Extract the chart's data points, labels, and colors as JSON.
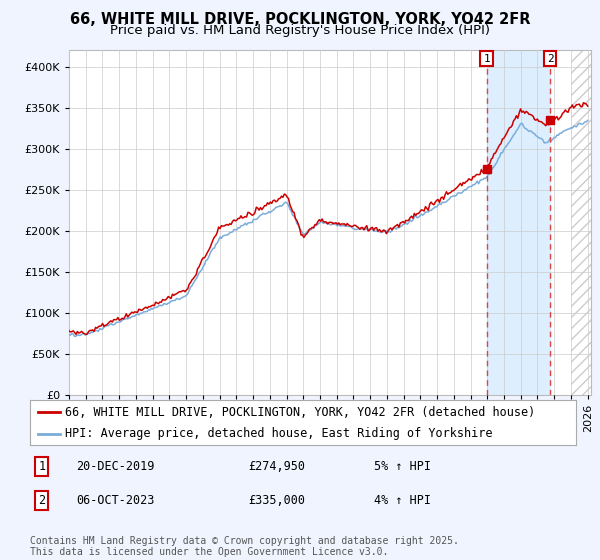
{
  "title_line1": "66, WHITE MILL DRIVE, POCKLINGTON, YORK, YO42 2FR",
  "title_line2": "Price paid vs. HM Land Registry's House Price Index (HPI)",
  "ylim": [
    0,
    420000
  ],
  "yticks": [
    0,
    50000,
    100000,
    150000,
    200000,
    250000,
    300000,
    350000,
    400000
  ],
  "year_start": 1995,
  "year_end": 2026,
  "legend_line1": "66, WHITE MILL DRIVE, POCKLINGTON, YORK, YO42 2FR (detached house)",
  "legend_line2": "HPI: Average price, detached house, East Riding of Yorkshire",
  "sale1_label": "1",
  "sale1_date": "20-DEC-2019",
  "sale1_price": "£274,950",
  "sale1_hpi": "5% ↑ HPI",
  "sale1_year": 2019.96,
  "sale1_value": 274950,
  "sale2_label": "2",
  "sale2_date": "06-OCT-2023",
  "sale2_price": "£335,000",
  "sale2_hpi": "4% ↑ HPI",
  "sale2_year": 2023.77,
  "sale2_value": 335000,
  "red_color": "#cc0000",
  "blue_color": "#7aadda",
  "shade_color": "#ddeeff",
  "dashed_color": "#dd4444",
  "background_color": "#f0f4ff",
  "plot_bg_color": "#ffffff",
  "grid_color": "#cccccc",
  "footer": "Contains HM Land Registry data © Crown copyright and database right 2025.\nThis data is licensed under the Open Government Licence v3.0.",
  "title_fontsize": 10.5,
  "subtitle_fontsize": 9.5,
  "tick_fontsize": 8,
  "legend_fontsize": 8.5,
  "annotation_fontsize": 8.5
}
